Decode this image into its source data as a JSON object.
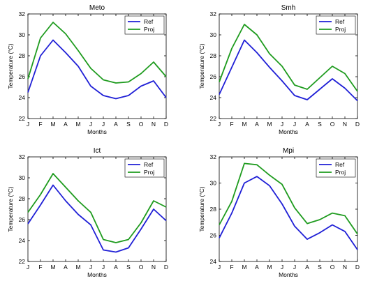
{
  "chart_data": [
    {
      "type": "line",
      "title": "Meto",
      "xlabel": "Months",
      "ylabel": "Temperature (°C)",
      "categories": [
        "J",
        "F",
        "M",
        "A",
        "M",
        "J",
        "J",
        "A",
        "S",
        "O",
        "N",
        "D"
      ],
      "ylim": [
        22,
        32
      ],
      "yticks": [
        22,
        24,
        26,
        28,
        30,
        32
      ],
      "grid": false,
      "legend": "top-right",
      "series": [
        {
          "name": "Ref",
          "color": "#1f1fd6",
          "values": [
            24.5,
            28.0,
            29.5,
            28.3,
            27.0,
            25.1,
            24.2,
            23.9,
            24.2,
            25.1,
            25.6,
            24.0
          ]
        },
        {
          "name": "Proj",
          "color": "#1e9b1e",
          "values": [
            25.8,
            29.7,
            31.2,
            30.1,
            28.5,
            26.8,
            25.7,
            25.4,
            25.5,
            26.3,
            27.4,
            26.0
          ]
        }
      ]
    },
    {
      "type": "line",
      "title": "Smh",
      "xlabel": "Months",
      "ylabel": "Temperature (°C)",
      "categories": [
        "J",
        "F",
        "M",
        "A",
        "M",
        "J",
        "J",
        "A",
        "S",
        "O",
        "N",
        "D"
      ],
      "ylim": [
        22,
        32
      ],
      "yticks": [
        22,
        24,
        26,
        28,
        30,
        32
      ],
      "grid": false,
      "legend": "top-right",
      "series": [
        {
          "name": "Ref",
          "color": "#1f1fd6",
          "values": [
            24.3,
            26.9,
            29.5,
            28.3,
            26.9,
            25.6,
            24.2,
            23.8,
            24.8,
            25.8,
            24.9,
            23.7
          ]
        },
        {
          "name": "Proj",
          "color": "#1e9b1e",
          "values": [
            25.5,
            28.7,
            31.0,
            30.0,
            28.2,
            27.0,
            25.2,
            24.8,
            25.9,
            27.0,
            26.3,
            24.6
          ]
        }
      ]
    },
    {
      "type": "line",
      "title": "Ict",
      "xlabel": "Months",
      "ylabel": "Temperature (°C)",
      "categories": [
        "J",
        "F",
        "M",
        "A",
        "M",
        "J",
        "J",
        "A",
        "S",
        "O",
        "N",
        "D"
      ],
      "ylim": [
        22,
        32
      ],
      "yticks": [
        22,
        24,
        26,
        28,
        30,
        32
      ],
      "grid": false,
      "legend": "top-right",
      "series": [
        {
          "name": "Ref",
          "color": "#1f1fd6",
          "values": [
            25.6,
            27.4,
            29.3,
            27.8,
            26.5,
            25.5,
            23.1,
            22.9,
            23.3,
            25.1,
            27.0,
            25.9
          ]
        },
        {
          "name": "Proj",
          "color": "#1e9b1e",
          "values": [
            26.7,
            28.4,
            30.4,
            29.1,
            27.8,
            26.7,
            24.1,
            23.8,
            24.1,
            25.7,
            27.8,
            27.2
          ]
        }
      ]
    },
    {
      "type": "line",
      "title": "Mpi",
      "xlabel": "Months",
      "ylabel": "Temperature (°C)",
      "categories": [
        "J",
        "F",
        "M",
        "A",
        "M",
        "J",
        "J",
        "A",
        "S",
        "O",
        "N",
        "D"
      ],
      "ylim": [
        24,
        32
      ],
      "yticks": [
        24,
        26,
        28,
        30,
        32
      ],
      "grid": false,
      "legend": "top-right",
      "series": [
        {
          "name": "Ref",
          "color": "#1f1fd6",
          "values": [
            25.8,
            27.7,
            30.0,
            30.5,
            29.8,
            28.4,
            26.7,
            25.7,
            26.2,
            26.8,
            26.3,
            24.9
          ]
        },
        {
          "name": "Proj",
          "color": "#1e9b1e",
          "values": [
            26.8,
            28.6,
            31.5,
            31.4,
            30.6,
            29.9,
            28.1,
            26.9,
            27.2,
            27.7,
            27.5,
            26.1
          ]
        }
      ]
    }
  ]
}
